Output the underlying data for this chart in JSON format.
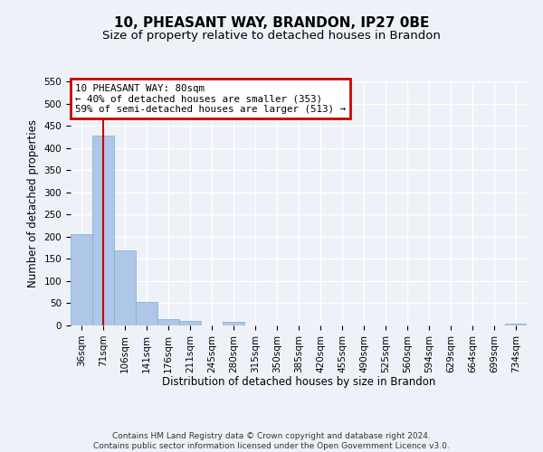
{
  "title": "10, PHEASANT WAY, BRANDON, IP27 0BE",
  "subtitle": "Size of property relative to detached houses in Brandon",
  "xlabel": "Distribution of detached houses by size in Brandon",
  "ylabel": "Number of detached properties",
  "categories": [
    "36sqm",
    "71sqm",
    "106sqm",
    "141sqm",
    "176sqm",
    "211sqm",
    "245sqm",
    "280sqm",
    "315sqm",
    "350sqm",
    "385sqm",
    "420sqm",
    "455sqm",
    "490sqm",
    "525sqm",
    "560sqm",
    "594sqm",
    "629sqm",
    "664sqm",
    "699sqm",
    "734sqm"
  ],
  "values": [
    205,
    428,
    170,
    53,
    14,
    10,
    0,
    9,
    0,
    0,
    0,
    0,
    0,
    0,
    0,
    0,
    0,
    0,
    0,
    0,
    5
  ],
  "bar_color": "#aec6e8",
  "bar_edge_color": "#7aafd4",
  "red_line_x": 1.0,
  "annotation_text": "10 PHEASANT WAY: 80sqm\n← 40% of detached houses are smaller (353)\n59% of semi-detached houses are larger (513) →",
  "annotation_box_facecolor": "#ffffff",
  "annotation_box_edgecolor": "#cc0000",
  "ylim": [
    0,
    550
  ],
  "yticks": [
    0,
    50,
    100,
    150,
    200,
    250,
    300,
    350,
    400,
    450,
    500,
    550
  ],
  "footer_text": "Contains HM Land Registry data © Crown copyright and database right 2024.\nContains public sector information licensed under the Open Government Licence v3.0.",
  "bg_color": "#eef2f8",
  "plot_bg_color": "#eef2f8",
  "grid_color": "#ffffff",
  "title_fontsize": 11,
  "subtitle_fontsize": 9.5,
  "axis_label_fontsize": 8.5,
  "tick_fontsize": 7.5,
  "annotation_fontsize": 7.8,
  "footer_fontsize": 6.5
}
